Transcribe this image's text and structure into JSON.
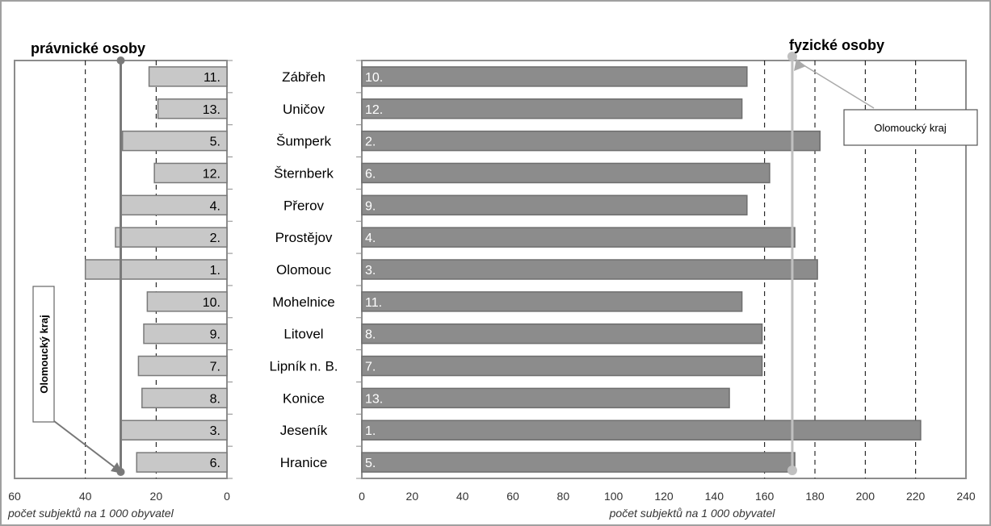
{
  "chart_data": [
    {
      "type": "bar",
      "orientation": "horizontal",
      "title": "právnické osoby",
      "xlabel": "počet subjektů na 1 000 obyvatel",
      "xlim": [
        0,
        60
      ],
      "x_reversed": true,
      "xticks": [
        "0",
        "20",
        "40",
        "60"
      ],
      "grid": "dashed vertical",
      "categories": [
        "Zábřeh",
        "Uničov",
        "Šumperk",
        "Šternberk",
        "Přerov",
        "Prostějov",
        "Olomouc",
        "Mohelnice",
        "Litovel",
        "Lipník n. B.",
        "Konice",
        "Jeseník",
        "Hranice"
      ],
      "values": [
        22,
        19.5,
        29.5,
        20.5,
        30,
        31.5,
        40,
        22.5,
        23.5,
        25,
        24,
        30,
        25.5
      ],
      "rank_labels": [
        "11.",
        "13.",
        "5.",
        "12.",
        "4.",
        "2.",
        "1.",
        "10.",
        "9.",
        "7.",
        "8.",
        "3.",
        "6."
      ],
      "reference_line": {
        "label": "Olomoucký kraj",
        "value": 30
      },
      "bar_color": "#c8c8c8"
    },
    {
      "type": "bar",
      "orientation": "horizontal",
      "title": "fyzické osoby",
      "xlabel": "počet subjektů na 1 000 obyvatel",
      "xlim": [
        0,
        240
      ],
      "xticks": [
        "0",
        "20",
        "40",
        "60",
        "80",
        "100",
        "120",
        "140",
        "160",
        "180",
        "200",
        "220",
        "240"
      ],
      "grid": "dashed vertical",
      "categories": [
        "Zábřeh",
        "Uničov",
        "Šumperk",
        "Šternberk",
        "Přerov",
        "Prostějov",
        "Olomouc",
        "Mohelnice",
        "Litovel",
        "Lipník n. B.",
        "Konice",
        "Jeseník",
        "Hranice"
      ],
      "values": [
        153,
        151,
        182,
        162,
        153,
        172,
        181,
        151,
        159,
        159,
        146,
        222,
        172
      ],
      "rank_labels": [
        "10.",
        "12.",
        "2.",
        "6.",
        "9.",
        "4.",
        "3.",
        "11.",
        "8.",
        "7.",
        "13.",
        "1.",
        "5."
      ],
      "reference_line": {
        "label": "Olomoucký kraj",
        "value": 171
      },
      "bar_color": "#8c8c8c"
    }
  ]
}
